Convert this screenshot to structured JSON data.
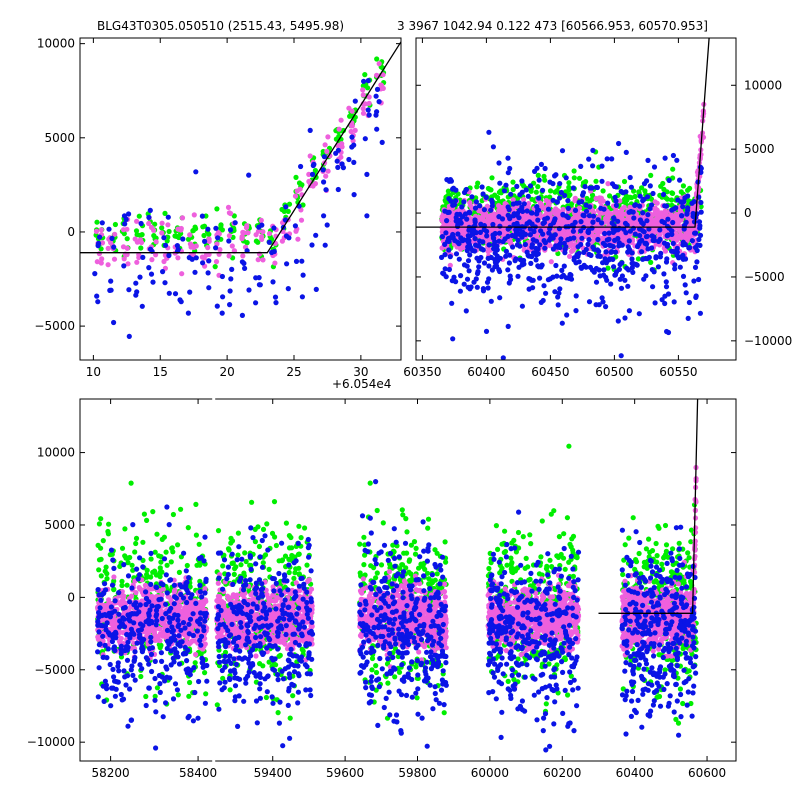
{
  "figure": {
    "title_left": "BLG43T0305.050510 (2515.43, 5495.98)",
    "title_right": "3 3967 1042.94 0.122 473 [60566.953, 60570.953]",
    "colors": {
      "green": "#00ee00",
      "blue": "#0a14e6",
      "pink": "#ee60dd",
      "model": "#000000"
    }
  },
  "chart_data": [
    {
      "type": "scatter",
      "panel": "top-left zoom",
      "x_offset_label": "+6.054e4",
      "xlim": [
        9,
        33
      ],
      "ylim": [
        -6800,
        10300
      ],
      "xticks": [
        10,
        15,
        20,
        25,
        30
      ],
      "xtick_labels": [
        "10",
        "15",
        "20",
        "25",
        "30"
      ],
      "yticks": [
        -5000,
        0,
        5000,
        10000
      ],
      "ytick_labels": [
        "−5000",
        "0",
        "5000",
        "10000"
      ],
      "y_axis_side": "left",
      "model_line": {
        "x": [
          9,
          23,
          33
        ],
        "y": [
          -1100,
          -1100,
          10100
        ]
      },
      "series_style": [
        "green",
        "pink",
        "blue"
      ],
      "nights": [
        10,
        11,
        12,
        13,
        14,
        15,
        16,
        17,
        18,
        19,
        20,
        21,
        22,
        23,
        24,
        25,
        26,
        27,
        28,
        29,
        30,
        31
      ]
    },
    {
      "type": "scatter",
      "panel": "top-right",
      "xlim": [
        60345,
        60595
      ],
      "ylim": [
        -11500,
        13700
      ],
      "xticks": [
        60350,
        60400,
        60450,
        60500,
        60550
      ],
      "xtick_labels": [
        "60350",
        "60400",
        "60450",
        "60500",
        "60550"
      ],
      "yticks": [
        -10000,
        -5000,
        0,
        5000,
        10000
      ],
      "ytick_labels": [
        "−10000",
        "−5000",
        "0",
        "5000",
        "10000"
      ],
      "y_axis_side": "right",
      "model_line": {
        "x": [
          60345,
          60563,
          60574
        ],
        "y": [
          -1100,
          -1100,
          13700
        ]
      },
      "series_style": [
        "green",
        "pink",
        "blue"
      ],
      "baseline_range": [
        60365,
        60568
      ]
    },
    {
      "type": "scatter",
      "panel": "bottom full light curve",
      "xlim": [
        58130,
        60680
      ],
      "ylim": [
        -11300,
        13700
      ],
      "xticks": [
        58200,
        58400,
        59400,
        59600,
        59800,
        60000,
        60200,
        60400,
        60600
      ],
      "xtick_labels": [
        "58200",
        "58400",
        "59400",
        "59600",
        "59800",
        "60000",
        "60200",
        "60400",
        "60600"
      ],
      "yticks": [
        -10000,
        -5000,
        0,
        5000,
        10000
      ],
      "ytick_labels": [
        "−10000",
        "−5000",
        "0",
        "5000",
        "10000"
      ],
      "y_axis_side": "left",
      "axis_break_x": [
        58430,
        59230
      ],
      "model_line": {
        "x": [
          60300,
          60560,
          60574
        ],
        "y": [
          -1100,
          -1100,
          13700
        ]
      },
      "series_style": [
        "green",
        "pink",
        "blue"
      ],
      "seasons": [
        {
          "x": [
            58170,
            58420
          ]
        },
        {
          "x": [
            59245,
            59510
          ]
        },
        {
          "x": [
            59640,
            59880
          ]
        },
        {
          "x": [
            59995,
            60245
          ]
        },
        {
          "x": [
            60365,
            60570
          ]
        }
      ]
    }
  ]
}
